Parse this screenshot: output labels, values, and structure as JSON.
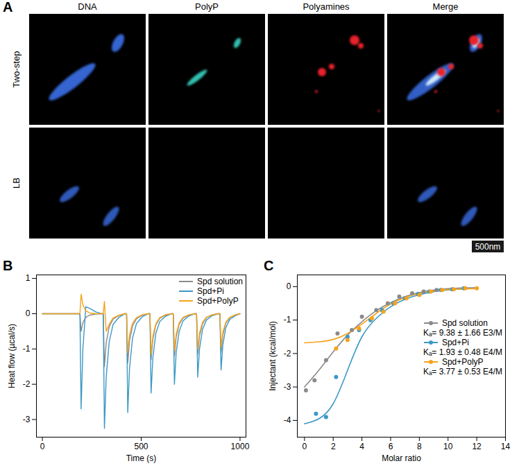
{
  "panel_a": {
    "panel": "A",
    "columns": [
      "DNA",
      "PolyP",
      "Polyamines",
      "Merge"
    ],
    "rows": [
      "Two-step",
      "LB"
    ],
    "scale_bar": "500nm"
  },
  "chart_data": [
    {
      "panel": "B",
      "type": "line",
      "x_label": "Time (s)",
      "y_label": "Heat flow (µcal/s)",
      "x": [
        0,
        180,
        190,
        196,
        205,
        220,
        240,
        270,
        300,
        308,
        314,
        323,
        338,
        358,
        388,
        418,
        426,
        432,
        441,
        456,
        476,
        506,
        536,
        544,
        550,
        559,
        574,
        594,
        624,
        654,
        662,
        668,
        677,
        692,
        712,
        742,
        772,
        780,
        786,
        795,
        810,
        830,
        860,
        890,
        898,
        904,
        913,
        928,
        948,
        978,
        1000
      ],
      "series": [
        {
          "name": "Spd solution",
          "color": "#8a8a8a",
          "values": [
            0,
            0,
            0,
            -0.5,
            -0.25,
            -0.1,
            -0.04,
            -0.01,
            0,
            0,
            -1.5,
            -0.82,
            -0.37,
            -0.15,
            -0.05,
            0,
            0,
            -1.4,
            -0.77,
            -0.35,
            -0.14,
            -0.04,
            0,
            0,
            -1.3,
            -0.72,
            -0.32,
            -0.13,
            -0.04,
            0,
            0,
            -1.2,
            -0.66,
            -0.3,
            -0.12,
            -0.04,
            0,
            0,
            -1.15,
            -0.63,
            -0.29,
            -0.11,
            -0.03,
            0,
            0,
            -1.1,
            -0.6,
            -0.27,
            -0.11,
            -0.03,
            0
          ]
        },
        {
          "name": "Spd+Pi",
          "color": "#3b98c6",
          "values": [
            0,
            0,
            0,
            -2.7,
            -1.0,
            0.2,
            0.15,
            0.05,
            0,
            0,
            -3.25,
            -1.8,
            -0.8,
            -0.3,
            -0.1,
            0,
            0,
            -2.8,
            -1.55,
            -0.7,
            -0.28,
            -0.08,
            0,
            0,
            -2.25,
            -1.25,
            -0.56,
            -0.22,
            -0.07,
            0,
            0,
            -2.0,
            -1.1,
            -0.5,
            -0.2,
            -0.06,
            0,
            0,
            -1.8,
            -1.0,
            -0.45,
            -0.18,
            -0.05,
            0,
            0,
            -1.6,
            -0.88,
            -0.4,
            -0.16,
            -0.05,
            0
          ]
        },
        {
          "name": "Spd+PolyP",
          "color": "#f7a21b",
          "values": [
            0,
            0,
            0,
            0.55,
            0.25,
            0.08,
            0.02,
            0,
            0,
            0,
            0.35,
            -0.5,
            -0.3,
            -0.12,
            -0.04,
            0,
            0,
            -1.1,
            -0.6,
            -0.27,
            -0.11,
            -0.03,
            0,
            0,
            -1.15,
            -0.63,
            -0.29,
            -0.11,
            -0.03,
            0,
            0,
            -1.05,
            -0.58,
            -0.26,
            -0.1,
            -0.03,
            0,
            0,
            -1.0,
            -0.55,
            -0.25,
            -0.1,
            -0.03,
            0,
            0,
            -0.95,
            -0.52,
            -0.24,
            -0.1,
            -0.03,
            0
          ]
        }
      ],
      "xlim": [
        -30,
        1030
      ],
      "xticks": [
        0,
        500,
        1000
      ],
      "ylim": [
        -3.5,
        1.1
      ],
      "yticks": [
        -3,
        -2,
        -1,
        0,
        1
      ],
      "legend": "top right"
    },
    {
      "panel": "C",
      "type": "scatter",
      "marker": "circle",
      "x_label": "Molar ratio",
      "y_label": "Injectant (kcal/mol)",
      "series": [
        {
          "name": "Spd solution",
          "color": "#8a8a8a",
          "annotation": "Kₐ= 9.38 ± 1.66 E3/M",
          "x": [
            0.1,
            0.7,
            1.5,
            2.3,
            3.3,
            4.0,
            5.0,
            5.8,
            6.6,
            7.5,
            8.3,
            9.2
          ],
          "values": [
            -3.1,
            -2.8,
            -2.2,
            -1.4,
            -1.3,
            -0.9,
            -0.7,
            -0.5,
            -0.3,
            -0.2,
            -0.15,
            -0.1
          ],
          "fit": {
            "x": [
              0,
              1,
              2,
              3,
              4,
              5,
              6,
              7,
              8,
              9,
              10,
              11,
              12
            ],
            "values": [
              -3.0,
              -2.5,
              -1.95,
              -1.45,
              -1.05,
              -0.72,
              -0.48,
              -0.3,
              -0.18,
              -0.1,
              -0.06,
              -0.04,
              -0.03
            ]
          }
        },
        {
          "name": "Spd+Pi",
          "color": "#3b98c6",
          "annotation": "Kₐ= 1.93 ± 0.48 E4/M",
          "x": [
            0.8,
            1.5,
            2.2,
            3.0,
            3.8,
            4.6,
            5.4,
            6.2,
            7.0,
            7.9,
            8.7,
            9.5,
            10.3,
            11.1
          ],
          "values": [
            -3.8,
            -3.9,
            -2.7,
            -1.5,
            -1.3,
            -1.0,
            -0.7,
            -0.5,
            -0.35,
            -0.22,
            -0.15,
            -0.1,
            -0.08,
            -0.05
          ],
          "fit": {
            "x": [
              0,
              1,
              2,
              3,
              4,
              5,
              6,
              7,
              8,
              9,
              10,
              11,
              12
            ],
            "values": [
              -4.1,
              -3.95,
              -3.5,
              -2.5,
              -1.5,
              -0.95,
              -0.6,
              -0.38,
              -0.24,
              -0.15,
              -0.1,
              -0.07,
              -0.05
            ]
          }
        },
        {
          "name": "Spd+PolyP",
          "color": "#f7a21b",
          "annotation": "Kₐ= 3.77 ± 0.53 E4/M",
          "x": [
            2.2,
            3.0,
            3.8,
            4.7,
            5.5,
            6.3,
            7.1,
            8.0,
            8.8,
            9.6,
            10.4,
            11.2,
            12.0
          ],
          "values": [
            -1.85,
            -1.6,
            -1.25,
            -0.95,
            -0.75,
            -0.5,
            -0.35,
            -0.25,
            -0.15,
            -0.1,
            -0.08,
            -0.05,
            -0.05
          ],
          "fit": {
            "x": [
              0,
              1,
              2,
              3,
              4,
              5,
              6,
              7,
              8,
              9,
              10,
              11,
              12
            ],
            "values": [
              -1.68,
              -1.65,
              -1.58,
              -1.4,
              -1.12,
              -0.8,
              -0.52,
              -0.33,
              -0.2,
              -0.13,
              -0.09,
              -0.07,
              -0.06
            ]
          }
        }
      ],
      "xlim": [
        -0.5,
        14
      ],
      "xticks": [
        0,
        2,
        4,
        6,
        8,
        10,
        12,
        14
      ],
      "ylim": [
        -4.5,
        0.35
      ],
      "yticks": [
        -4,
        -3,
        -2,
        -1,
        0
      ],
      "legend": "right"
    }
  ]
}
